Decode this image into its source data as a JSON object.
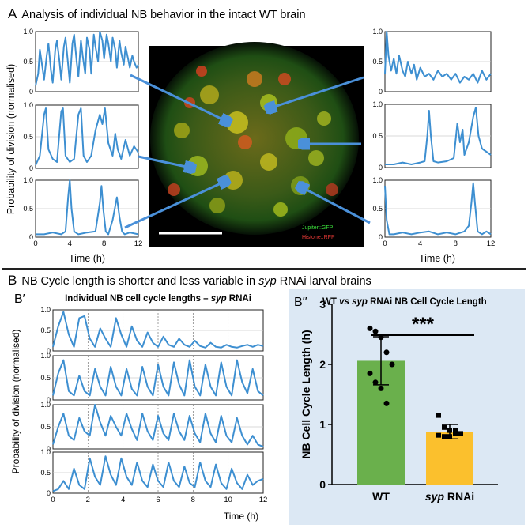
{
  "panel_a": {
    "letter": "A",
    "title": "Analysis of individual NB behavior in the intact WT brain",
    "ylabel": "Probability of division (normalised)",
    "xlabel": "Time (h)",
    "legend": {
      "green": "Jupiter::GFP",
      "red": "Histone::RFP"
    },
    "colors": {
      "trace": "#3d8fd1",
      "arrow": "#4a90d9",
      "green_channel": "#3be03b",
      "red_channel": "#e53935"
    }
  },
  "panel_b": {
    "letter": "B",
    "title_pre": "NB Cycle length is shorter and less variable in ",
    "title_italic": "syp",
    "title_post": " RNAi larval brains"
  },
  "panel_b1": {
    "label": "B′",
    "title_pre": "Individual NB cell cycle lengths – ",
    "title_italic": "syp",
    "title_post": " RNAi",
    "ylabel": "Probability of division (normalised)",
    "xlabel": "Time (h)"
  },
  "panel_b2": {
    "label": "B′′",
    "title_pre": "WT ",
    "title_italic": "vs syp",
    "title_post": " RNAi NB Cell Cycle Length",
    "significance": "***",
    "colors": {
      "background": "#dce8f4",
      "wt_bar": "#6ab04c",
      "syp_bar": "#fbc02d"
    }
  },
  "chart_data": [
    {
      "id": "A-left-top",
      "type": "line",
      "xlim": [
        0,
        12
      ],
      "ylim": [
        0,
        1
      ],
      "xticks": [],
      "yticks": [
        "0",
        "0.5",
        "1.0"
      ],
      "grid": true,
      "series": [
        {
          "x": [
            0,
            0.3,
            0.5,
            0.8,
            1.0,
            1.3,
            1.5,
            1.8,
            2.0,
            2.3,
            2.5,
            2.8,
            3.0,
            3.3,
            3.5,
            3.8,
            4.0,
            4.3,
            4.5,
            4.8,
            5.0,
            5.3,
            5.5,
            5.8,
            6.0,
            6.3,
            6.5,
            6.8,
            7.0,
            7.3,
            7.5,
            7.8,
            8.0,
            8.3,
            8.5,
            8.8,
            9.0,
            9.3,
            9.5,
            9.8,
            10.0,
            10.3,
            10.5,
            10.8,
            11.0,
            11.3,
            11.5,
            11.8,
            12.0
          ],
          "y": [
            0.1,
            0.3,
            0.7,
            0.4,
            0.2,
            0.6,
            0.8,
            0.35,
            0.15,
            0.7,
            0.85,
            0.5,
            0.2,
            0.75,
            0.9,
            0.45,
            0.15,
            0.8,
            0.95,
            0.5,
            0.25,
            0.85,
            0.6,
            0.3,
            0.9,
            0.7,
            0.3,
            0.95,
            0.75,
            0.5,
            1.0,
            0.85,
            0.55,
            0.95,
            0.8,
            0.5,
            0.9,
            0.7,
            0.4,
            0.85,
            0.65,
            0.45,
            0.75,
            0.55,
            0.4,
            0.6,
            0.5,
            0.4,
            0.45
          ]
        }
      ]
    },
    {
      "id": "A-left-mid",
      "type": "line",
      "xlim": [
        0,
        12
      ],
      "ylim": [
        0,
        1
      ],
      "xticks": [],
      "yticks": [
        "0",
        "0.5",
        "1.0"
      ],
      "grid": true,
      "series": [
        {
          "x": [
            0,
            0.5,
            1.0,
            1.2,
            1.5,
            2.0,
            2.5,
            3.0,
            3.2,
            3.5,
            4.0,
            4.5,
            5.0,
            5.3,
            5.6,
            6.0,
            6.5,
            7.0,
            7.5,
            7.8,
            8.1,
            8.5,
            9.0,
            9.3,
            9.6,
            10.0,
            10.5,
            11.0,
            11.5,
            12.0
          ],
          "y": [
            0.05,
            0.2,
            0.85,
            0.95,
            0.3,
            0.15,
            0.1,
            0.9,
            0.95,
            0.2,
            0.1,
            0.15,
            0.85,
            0.95,
            0.2,
            0.1,
            0.2,
            0.6,
            0.85,
            0.7,
            0.95,
            0.4,
            0.2,
            0.55,
            0.3,
            0.15,
            0.45,
            0.2,
            0.35,
            0.25
          ]
        }
      ]
    },
    {
      "id": "A-left-bottom",
      "type": "line",
      "xlim": [
        0,
        12
      ],
      "ylim": [
        0,
        1
      ],
      "xticks": [
        "0",
        "4",
        "8",
        "12"
      ],
      "yticks": [
        "0",
        "0.5",
        "1.0"
      ],
      "grid": true,
      "series": [
        {
          "x": [
            0,
            1,
            2,
            3,
            3.5,
            3.8,
            4.0,
            4.2,
            4.5,
            5,
            6,
            7,
            7.5,
            7.7,
            7.9,
            8.2,
            8.5,
            9,
            9.5,
            9.8,
            10.1,
            10.4,
            11,
            12
          ],
          "y": [
            0.05,
            0.05,
            0.08,
            0.05,
            0.1,
            0.7,
            1.0,
            0.5,
            0.1,
            0.05,
            0.08,
            0.1,
            0.6,
            0.9,
            0.5,
            0.1,
            0.05,
            0.3,
            0.7,
            0.35,
            0.1,
            0.05,
            0.08,
            0.05
          ]
        }
      ]
    },
    {
      "id": "A-right-top",
      "type": "line",
      "xlim": [
        0,
        12
      ],
      "ylim": [
        0,
        1
      ],
      "xticks": [],
      "yticks": [
        "0",
        "0.5",
        "1.0"
      ],
      "grid": true,
      "series": [
        {
          "x": [
            0,
            0.2,
            0.4,
            0.7,
            1.0,
            1.3,
            1.6,
            2.0,
            2.3,
            2.6,
            3.0,
            3.3,
            3.6,
            4.0,
            4.5,
            5.0,
            5.5,
            6.0,
            6.5,
            7.0,
            7.5,
            8.0,
            8.5,
            9.0,
            9.5,
            10.0,
            10.5,
            11.0,
            11.5,
            12.0
          ],
          "y": [
            0.3,
            1.0,
            0.6,
            0.35,
            0.55,
            0.3,
            0.6,
            0.35,
            0.25,
            0.5,
            0.3,
            0.45,
            0.2,
            0.4,
            0.25,
            0.3,
            0.2,
            0.35,
            0.25,
            0.3,
            0.2,
            0.3,
            0.15,
            0.25,
            0.2,
            0.3,
            0.15,
            0.35,
            0.2,
            0.3
          ]
        }
      ]
    },
    {
      "id": "A-right-mid",
      "type": "line",
      "xlim": [
        0,
        12
      ],
      "ylim": [
        0,
        1
      ],
      "xticks": [],
      "yticks": [
        "0",
        "0.5",
        "1.0"
      ],
      "grid": true,
      "series": [
        {
          "x": [
            0,
            1,
            2,
            3,
            4,
            4.5,
            4.8,
            5.0,
            5.2,
            5.5,
            6,
            7,
            7.8,
            8.2,
            8.5,
            8.8,
            9.0,
            9.5,
            10.0,
            10.3,
            10.6,
            11,
            11.5,
            12
          ],
          "y": [
            0.05,
            0.05,
            0.08,
            0.05,
            0.08,
            0.1,
            0.5,
            0.9,
            0.5,
            0.1,
            0.08,
            0.1,
            0.15,
            0.7,
            0.4,
            0.6,
            0.2,
            0.4,
            0.8,
            0.95,
            0.5,
            0.3,
            0.25,
            0.2
          ]
        }
      ]
    },
    {
      "id": "A-right-bottom",
      "type": "line",
      "xlim": [
        0,
        12
      ],
      "ylim": [
        0,
        1
      ],
      "xticks": [
        "0",
        "4",
        "8",
        "12"
      ],
      "yticks": [
        "0",
        "0.5",
        "1.0"
      ],
      "grid": true,
      "series": [
        {
          "x": [
            0,
            0.2,
            0.5,
            1,
            2,
            3,
            4,
            5,
            6,
            7,
            8,
            9,
            9.5,
            9.8,
            10.0,
            10.2,
            10.5,
            11,
            11.5,
            12
          ],
          "y": [
            0.9,
            0.3,
            0.05,
            0.05,
            0.08,
            0.05,
            0.08,
            0.1,
            0.05,
            0.08,
            0.05,
            0.1,
            0.2,
            0.6,
            0.95,
            0.6,
            0.1,
            0.05,
            0.1,
            0.05
          ]
        }
      ]
    },
    {
      "id": "B1-row1",
      "type": "line",
      "xlim": [
        0,
        12
      ],
      "ylim": [
        0,
        1
      ],
      "xticks": [],
      "yticks": [
        "0",
        "0.5",
        "1.0"
      ],
      "grid": true,
      "series": [
        {
          "x": [
            0,
            0.3,
            0.6,
            0.9,
            1.2,
            1.5,
            1.8,
            2.1,
            2.4,
            2.7,
            3.0,
            3.3,
            3.6,
            3.9,
            4.2,
            4.5,
            4.8,
            5.1,
            5.4,
            5.7,
            6.0,
            6.3,
            6.6,
            6.9,
            7.2,
            7.5,
            7.8,
            8.1,
            8.4,
            8.7,
            9.0,
            9.3,
            9.6,
            9.9,
            10.2,
            10.5,
            10.8,
            11.1,
            11.4,
            11.7,
            12.0
          ],
          "y": [
            0.1,
            0.6,
            0.95,
            0.4,
            0.1,
            0.8,
            0.85,
            0.3,
            0.1,
            0.55,
            0.3,
            0.1,
            0.8,
            0.4,
            0.1,
            0.6,
            0.25,
            0.1,
            0.45,
            0.2,
            0.1,
            0.35,
            0.15,
            0.1,
            0.3,
            0.15,
            0.1,
            0.25,
            0.12,
            0.08,
            0.2,
            0.1,
            0.08,
            0.15,
            0.1,
            0.08,
            0.12,
            0.15,
            0.1,
            0.15,
            0.12
          ]
        }
      ]
    },
    {
      "id": "B1-row2",
      "type": "line",
      "xlim": [
        0,
        12
      ],
      "ylim": [
        0,
        1
      ],
      "xticks": [],
      "yticks": [
        "0",
        "0.5",
        "1.0"
      ],
      "grid": true,
      "series": [
        {
          "x": [
            0,
            0.3,
            0.6,
            0.9,
            1.2,
            1.5,
            1.8,
            2.1,
            2.4,
            2.7,
            3.0,
            3.3,
            3.6,
            3.9,
            4.2,
            4.5,
            4.8,
            5.1,
            5.4,
            5.7,
            6.0,
            6.3,
            6.6,
            6.9,
            7.2,
            7.5,
            7.8,
            8.1,
            8.4,
            8.7,
            9.0,
            9.3,
            9.6,
            9.9,
            10.2,
            10.5,
            10.8,
            11.1,
            11.4,
            11.7,
            12.0
          ],
          "y": [
            0.1,
            0.6,
            0.9,
            0.2,
            0.1,
            0.55,
            0.2,
            0.1,
            0.7,
            0.3,
            0.1,
            0.75,
            0.3,
            0.1,
            0.7,
            0.25,
            0.1,
            0.75,
            0.3,
            0.1,
            0.8,
            0.3,
            0.1,
            0.85,
            0.35,
            0.1,
            0.9,
            0.3,
            0.1,
            0.8,
            0.3,
            0.1,
            0.85,
            0.3,
            0.1,
            0.9,
            0.4,
            0.15,
            0.7,
            0.2,
            0.1
          ]
        }
      ]
    },
    {
      "id": "B1-row3",
      "type": "line",
      "xlim": [
        0,
        12
      ],
      "ylim": [
        0,
        1
      ],
      "xticks": [],
      "yticks": [
        "0",
        "0.5",
        "1.0"
      ],
      "grid": true,
      "series": [
        {
          "x": [
            0,
            0.3,
            0.6,
            0.9,
            1.2,
            1.5,
            1.8,
            2.1,
            2.4,
            2.7,
            3.0,
            3.3,
            3.6,
            3.9,
            4.2,
            4.5,
            4.8,
            5.1,
            5.4,
            5.7,
            6.0,
            6.3,
            6.6,
            6.9,
            7.2,
            7.5,
            7.8,
            8.1,
            8.4,
            8.7,
            9.0,
            9.3,
            9.6,
            9.9,
            10.2,
            10.5,
            10.8,
            11.1,
            11.4,
            11.7,
            12.0
          ],
          "y": [
            0.1,
            0.5,
            0.8,
            0.3,
            0.2,
            0.7,
            0.4,
            0.3,
            1.0,
            0.6,
            0.3,
            0.75,
            0.5,
            0.3,
            0.8,
            0.45,
            0.2,
            0.8,
            0.4,
            0.2,
            0.75,
            0.35,
            0.2,
            0.8,
            0.4,
            0.2,
            0.75,
            0.35,
            0.15,
            0.8,
            0.35,
            0.15,
            0.75,
            0.3,
            0.15,
            0.7,
            0.3,
            0.1,
            0.3,
            0.1,
            0.05
          ]
        }
      ]
    },
    {
      "id": "B1-row4",
      "type": "line",
      "xlim": [
        0,
        12
      ],
      "ylim": [
        0,
        1
      ],
      "xticks": [
        "0",
        "2",
        "4",
        "6",
        "8",
        "10",
        "12"
      ],
      "yticks": [
        "0",
        "0.5",
        "1.0"
      ],
      "grid": true,
      "series": [
        {
          "x": [
            0,
            0.3,
            0.6,
            0.9,
            1.2,
            1.5,
            1.8,
            2.1,
            2.4,
            2.7,
            3.0,
            3.3,
            3.6,
            3.9,
            4.2,
            4.5,
            4.8,
            5.1,
            5.4,
            5.7,
            6.0,
            6.3,
            6.6,
            6.9,
            7.2,
            7.5,
            7.8,
            8.1,
            8.4,
            8.7,
            9.0,
            9.3,
            9.6,
            9.9,
            10.2,
            10.5,
            10.8,
            11.1,
            11.4,
            11.7,
            12.0
          ],
          "y": [
            0.05,
            0.1,
            0.3,
            0.1,
            0.6,
            0.2,
            0.1,
            0.85,
            0.4,
            0.2,
            0.9,
            0.45,
            0.2,
            0.85,
            0.4,
            0.2,
            0.75,
            0.3,
            0.15,
            0.7,
            0.3,
            0.15,
            0.75,
            0.3,
            0.15,
            0.65,
            0.25,
            0.15,
            0.75,
            0.3,
            0.15,
            0.7,
            0.25,
            0.1,
            0.6,
            0.25,
            0.1,
            0.45,
            0.2,
            0.3,
            0.35
          ]
        }
      ]
    },
    {
      "id": "B2-bar",
      "type": "bar",
      "categories": [
        "WT",
        "syp RNAi"
      ],
      "values": [
        2.06,
        0.88
      ],
      "errors": [
        0.4,
        0.12
      ],
      "points": [
        [
          2.6,
          2.55,
          2.45,
          2.2,
          2.0,
          1.85,
          1.7,
          1.6,
          1.35
        ],
        [
          1.15,
          0.95,
          0.9,
          0.85,
          0.85,
          0.82,
          0.8,
          0.8,
          0.9
        ]
      ],
      "ylabel": "NB Cell Cycle Length (h)",
      "ylim": [
        0,
        3
      ],
      "yticks": [
        "0",
        "1",
        "2",
        "3"
      ]
    }
  ]
}
